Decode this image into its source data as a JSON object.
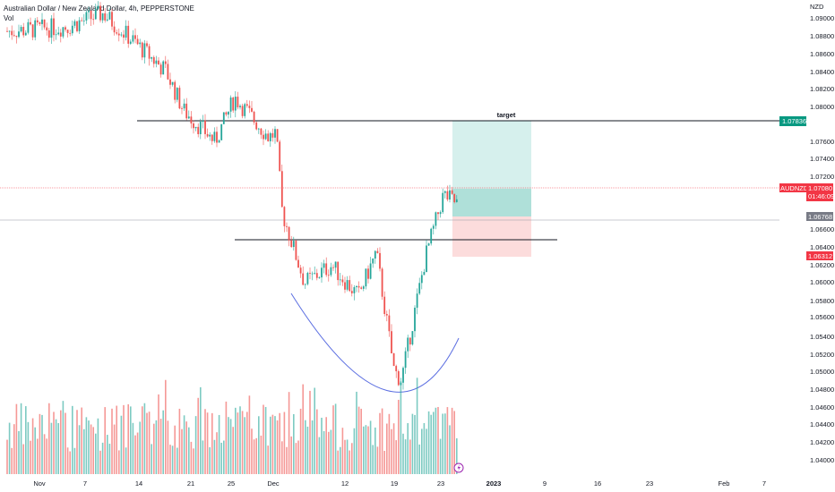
{
  "header": {
    "symbol_line": "Australian Dollar / New Zealand Dollar, 4h, PEPPERSTONE",
    "volume_label": "Vol"
  },
  "axis": {
    "currency": "NZD",
    "y_ticks": [
      "1.09000",
      "1.08800",
      "1.08600",
      "1.08400",
      "1.08200",
      "1.08000",
      "1.07600",
      "1.07400",
      "1.07200",
      "1.06600",
      "1.06400",
      "1.06200",
      "1.06000",
      "1.05800",
      "1.05600",
      "1.05400",
      "1.05200",
      "1.05000",
      "1.04800",
      "1.04600",
      "1.04400",
      "1.04200",
      "1.04000"
    ],
    "x_ticks": [
      "Nov",
      "7",
      "14",
      "21",
      "25",
      "Dec",
      "12",
      "19",
      "23",
      "2023",
      "9",
      "16",
      "23",
      "Feb",
      "7"
    ]
  },
  "annotations": {
    "target_label": "target"
  },
  "badges": {
    "target_price": "1.07836",
    "symbol": "AUDNZD",
    "last_price": "1.07080",
    "countdown": "01:46:09",
    "entry_price": "1.06768",
    "stop_price": "1.06312"
  },
  "colors": {
    "up": "#26a69a",
    "down": "#ef5350",
    "target_badge": "#089981",
    "last_badge": "#f23645",
    "entry_badge": "#787b86",
    "stop_badge": "#f23645",
    "curve": "#5b6ee1",
    "profit_zone": "#c8ebe7",
    "loss_zone": "#fbd6d6",
    "event_icon": "#9c27b0"
  },
  "chart_data": {
    "type": "candlestick",
    "symbol": "AUDNZD",
    "timeframe": "4h",
    "broker": "PEPPERSTONE",
    "currency": "NZD",
    "x_start": "Nov",
    "x_end": "Feb 7",
    "y_range": [
      1.039,
      1.0915
    ],
    "price_path": [
      {
        "date": "Nov 1",
        "price": 1.0885
      },
      {
        "date": "Nov 7",
        "price": 1.089
      },
      {
        "date": "Nov 11",
        "price": 1.0905
      },
      {
        "date": "Nov 15",
        "price": 1.084
      },
      {
        "date": "Nov 17",
        "price": 1.0795
      },
      {
        "date": "Nov 21",
        "price": 1.076
      },
      {
        "date": "Nov 24",
        "price": 1.081
      },
      {
        "date": "Nov 28",
        "price": 1.0765
      },
      {
        "date": "Nov 30",
        "price": 1.077
      },
      {
        "date": "Dec 1",
        "price": 1.068
      },
      {
        "date": "Dec 5",
        "price": 1.06
      },
      {
        "date": "Dec 8",
        "price": 1.062
      },
      {
        "date": "Dec 13",
        "price": 1.0585
      },
      {
        "date": "Dec 15",
        "price": 1.0635
      },
      {
        "date": "Dec 17",
        "price": 1.05
      },
      {
        "date": "Dec 19",
        "price": 1.049
      },
      {
        "date": "Dec 21",
        "price": 1.063
      },
      {
        "date": "Dec 23",
        "price": 1.07
      },
      {
        "date": "Dec 26",
        "price": 1.069
      }
    ],
    "levels": [
      {
        "label": "target",
        "price": 1.07836
      },
      {
        "price": 1.065
      },
      {
        "price": 1.06768
      },
      {
        "price": 1.06312
      }
    ],
    "current_price": 1.0708,
    "volume_series": "Vol"
  }
}
